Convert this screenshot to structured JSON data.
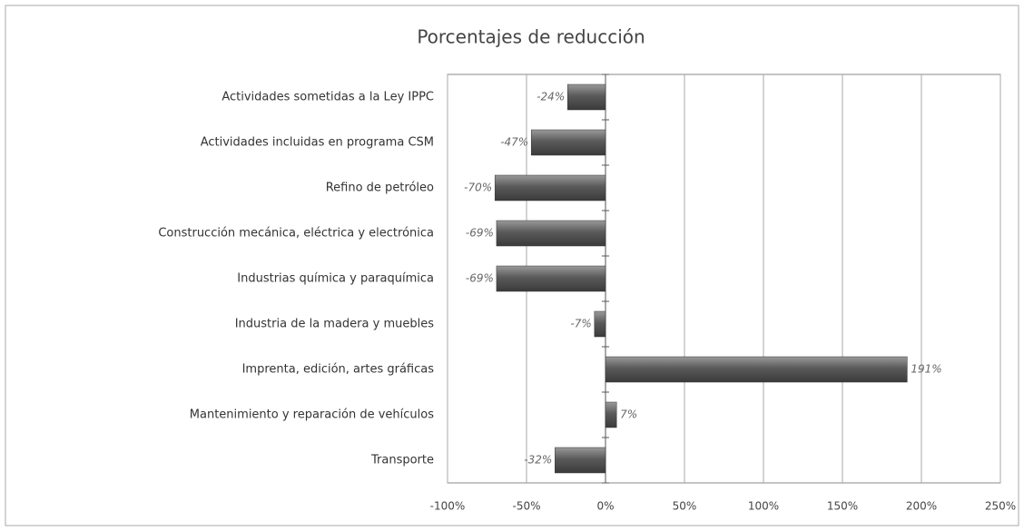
{
  "chart_data": {
    "type": "bar",
    "orientation": "horizontal",
    "title": "Porcentajes de reducción",
    "categories": [
      "Actividades sometidas a la Ley IPPC",
      "Actividades incluidas en programa CSM",
      "Refino de petróleo",
      "Construcción mecánica, eléctrica y electrónica",
      "Industrias química y paraquímica",
      "Industria de la madera y muebles",
      "Imprenta, edición, artes gráficas",
      "Mantenimiento y reparación de vehículos",
      "Transporte"
    ],
    "values": [
      -24,
      -47,
      -70,
      -69,
      -69,
      -7,
      191,
      7,
      -32
    ],
    "value_labels": [
      "-24%",
      "-47%",
      "-70%",
      "-69%",
      "-69%",
      "-7%",
      "191%",
      "7%",
      "-32%"
    ],
    "color": "#5a5a5a",
    "xlim": [
      -100,
      250
    ],
    "xticks": [
      {
        "value": -100,
        "label": "-100%"
      },
      {
        "value": -50,
        "label": "-50%"
      },
      {
        "value": 0,
        "label": "0%"
      },
      {
        "value": 50,
        "label": "50%"
      },
      {
        "value": 100,
        "label": "100%"
      },
      {
        "value": 150,
        "label": "150%"
      },
      {
        "value": 200,
        "label": "200%"
      },
      {
        "value": 250,
        "label": "250%"
      }
    ],
    "grid": true
  }
}
